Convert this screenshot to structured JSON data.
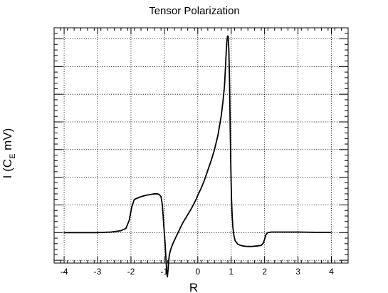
{
  "chart_data": {
    "type": "line",
    "title": "Tensor Polarization",
    "xlabel": "R",
    "ylabel": {
      "prefix": "I (C",
      "subscript": "E",
      "suffix": " mV)"
    },
    "xlim": [
      -4.3,
      4.5
    ],
    "ylim": [
      -1.1,
      7.4
    ],
    "x_ticks": [
      -4,
      -3,
      -2,
      -1,
      0,
      1,
      2,
      3,
      4
    ],
    "x_tick_labels": [
      "-4",
      "-3",
      "-2",
      "-1",
      "0",
      "1",
      "2",
      "3",
      "4"
    ],
    "y_ticks": [
      -1,
      0,
      1,
      2,
      3,
      4,
      5,
      6,
      7
    ],
    "y_tick_labels": [],
    "grid": true,
    "line_color": "#000000",
    "series": [
      {
        "x": [
          -4.0,
          -3.0,
          -2.6,
          -2.3,
          -2.15,
          -2.05,
          -1.98,
          -1.9,
          -1.8,
          -1.7,
          -1.55,
          -1.4,
          -1.3,
          -1.2,
          -1.15,
          -1.1,
          -1.06,
          -1.02,
          -0.98,
          -0.95,
          -0.93,
          -0.91,
          -0.89,
          -0.87,
          -0.85,
          -0.82,
          -0.78,
          -0.72,
          -0.65,
          -0.55,
          -0.45,
          -0.35,
          -0.2,
          -0.05,
          0.0,
          0.1,
          0.2,
          0.3,
          0.4,
          0.5,
          0.6,
          0.7,
          0.75,
          0.8,
          0.83,
          0.85,
          0.87,
          0.89,
          0.91,
          0.93,
          0.95,
          0.97,
          0.99,
          1.01,
          1.03,
          1.05,
          1.08,
          1.12,
          1.2,
          1.3,
          1.4,
          1.5,
          1.6,
          1.7,
          1.8,
          1.9,
          1.95,
          2.0,
          2.03,
          2.07,
          2.1,
          2.2,
          2.5,
          3.0,
          3.5,
          4.0
        ],
        "y": [
          0.0,
          0.0,
          0.02,
          0.07,
          0.15,
          0.45,
          0.9,
          1.2,
          1.25,
          1.3,
          1.35,
          1.38,
          1.4,
          1.4,
          1.37,
          1.3,
          1.0,
          0.3,
          -0.35,
          -1.0,
          -1.4,
          -1.6,
          -1.35,
          -1.0,
          -0.8,
          -0.65,
          -0.5,
          -0.33,
          -0.15,
          0.1,
          0.35,
          0.55,
          0.85,
          1.2,
          1.35,
          1.6,
          1.9,
          2.25,
          2.6,
          3.0,
          3.5,
          4.2,
          4.7,
          5.3,
          6.0,
          6.5,
          6.9,
          7.1,
          7.1,
          6.6,
          5.5,
          3.8,
          2.3,
          1.2,
          0.6,
          0.2,
          -0.1,
          -0.3,
          -0.42,
          -0.47,
          -0.49,
          -0.5,
          -0.5,
          -0.49,
          -0.48,
          -0.46,
          -0.4,
          -0.25,
          -0.1,
          -0.03,
          0.0,
          0.02,
          0.02,
          0.02,
          0.01,
          0.01
        ]
      }
    ]
  }
}
